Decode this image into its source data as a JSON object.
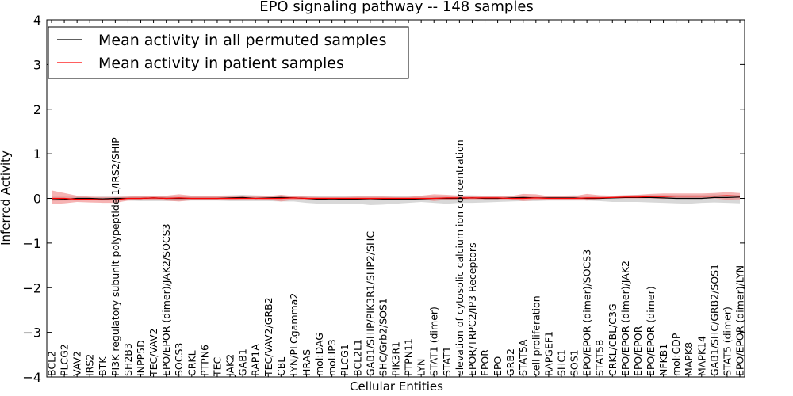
{
  "chart_data": {
    "type": "line",
    "title": "EPO signaling pathway -- 148 samples",
    "xlabel": "Cellular Entities",
    "ylabel": "Inferred Activity",
    "ylim": [
      -4,
      4
    ],
    "yticks": [
      {
        "value": -4,
        "label": "−4"
      },
      {
        "value": -3,
        "label": "−3"
      },
      {
        "value": -2,
        "label": "−2"
      },
      {
        "value": -1,
        "label": "−1"
      },
      {
        "value": 0,
        "label": "0"
      },
      {
        "value": 1,
        "label": "1"
      },
      {
        "value": 2,
        "label": "2"
      },
      {
        "value": 3,
        "label": "3"
      },
      {
        "value": 4,
        "label": "4"
      }
    ],
    "grid": false,
    "legend_position": "top-left",
    "legend": [
      {
        "label": "Mean activity in all permuted samples",
        "color": "#000000"
      },
      {
        "label": "Mean activity in patient samples",
        "color": "#ff0000"
      }
    ],
    "colors": {
      "permuted_line": "#000000",
      "patient_line": "#ff0000",
      "permuted_band": "#c8c8c8",
      "patient_band": "#f08080"
    },
    "categories": [
      "BCL2",
      "PLCG2",
      "VAV2",
      "IRS2",
      "BTK",
      "PI3K regulatory subunit polypeptide 1/IRS2/SHIP",
      "SH2B3",
      "INPP5D",
      "TEC/VAV2",
      "EPO/EPOR (dimer)/JAK2/SOCS3",
      "SOCS3",
      "CRKL",
      "PTPN6",
      "TEC",
      "JAK2",
      "GAB1",
      "RAP1A",
      "TEC/VAV2/GRB2",
      "CBL",
      "LYN/PLCgamma2",
      "HRAS",
      "mol:DAG",
      "mol:IP3",
      "PLCG1",
      "BCL2L1",
      "GAB1/SHIP/PIK3R1/SHP2/SHC",
      "SHC/Grb2/SOS1",
      "PIK3R1",
      "PTPN11",
      "LYN",
      "STAT1 (dimer)",
      "STAT1",
      "elevation of cytosolic calcium ion concentration",
      "EPOR/TRPC2/IP3 Receptors",
      "EPOR",
      "EPO",
      "GRB2",
      "STAT5A",
      "cell proliferation",
      "RAPGEF1",
      "SHC1",
      "SOS1",
      "EPO/EPOR (dimer)/SOCS3",
      "STAT5B",
      "CRKL/CBL/C3G",
      "EPO/EPOR (dimer)/JAK2",
      "EPO/EPOR",
      "EPO/EPOR (dimer)",
      "NFKB1",
      "mol:GDP",
      "MAPK8",
      "MAPK14",
      "GAB1/SHC/GRB2/SOS1",
      "STAT5 (dimer)",
      "EPO/EPOR (dimer)/LYN"
    ],
    "series": [
      {
        "name": "Mean activity in all permuted samples",
        "values": [
          -0.03,
          -0.02,
          0.0,
          0.0,
          -0.01,
          0.0,
          0.0,
          0.0,
          0.01,
          0.0,
          0.0,
          0.0,
          0.0,
          0.0,
          0.01,
          0.02,
          0.0,
          0.01,
          0.02,
          0.01,
          0.0,
          -0.02,
          -0.01,
          -0.02,
          -0.02,
          -0.03,
          -0.02,
          -0.02,
          -0.02,
          -0.01,
          0.0,
          0.0,
          0.0,
          0.01,
          0.0,
          0.0,
          0.01,
          0.02,
          0.01,
          0.01,
          0.01,
          0.01,
          0.0,
          0.0,
          0.01,
          0.02,
          0.02,
          0.02,
          0.01,
          0.0,
          0.0,
          0.0,
          0.02,
          0.02,
          0.03
        ],
        "band_low": [
          -0.06,
          -0.05,
          -0.05,
          -0.04,
          -0.05,
          -0.05,
          -0.05,
          -0.06,
          -0.06,
          -0.06,
          -0.06,
          -0.05,
          -0.05,
          -0.05,
          -0.06,
          -0.06,
          -0.06,
          -0.06,
          -0.07,
          -0.07,
          -0.1,
          -0.12,
          -0.13,
          -0.13,
          -0.12,
          -0.15,
          -0.14,
          -0.12,
          -0.1,
          -0.08,
          -0.1,
          -0.12,
          -0.1,
          -0.1,
          -0.09,
          -0.08,
          -0.07,
          -0.06,
          -0.06,
          -0.05,
          -0.05,
          -0.05,
          -0.05,
          -0.06,
          -0.08,
          -0.08,
          -0.08,
          -0.09,
          -0.1,
          -0.11,
          -0.12,
          -0.1,
          -0.09,
          -0.1,
          -0.11
        ],
        "band_high": [
          0.04,
          0.04,
          0.04,
          0.03,
          0.04,
          0.04,
          0.04,
          0.05,
          0.06,
          0.06,
          0.05,
          0.05,
          0.06,
          0.06,
          0.07,
          0.08,
          0.07,
          0.06,
          0.07,
          0.06,
          0.06,
          0.06,
          0.05,
          0.05,
          0.05,
          0.05,
          0.05,
          0.05,
          0.05,
          0.05,
          0.06,
          0.06,
          0.07,
          0.07,
          0.06,
          0.06,
          0.06,
          0.06,
          0.06,
          0.06,
          0.06,
          0.07,
          0.06,
          0.06,
          0.06,
          0.07,
          0.08,
          0.08,
          0.08,
          0.08,
          0.08,
          0.08,
          0.09,
          0.08,
          0.08
        ]
      },
      {
        "name": "Mean activity in patient samples",
        "values": [
          0.0,
          0.0,
          -0.02,
          -0.02,
          -0.03,
          -0.03,
          0.0,
          0.0,
          0.01,
          0.0,
          0.01,
          0.0,
          0.0,
          0.0,
          0.0,
          0.0,
          0.0,
          0.0,
          0.0,
          0.01,
          0.0,
          0.0,
          0.0,
          0.0,
          0.0,
          0.0,
          0.0,
          0.0,
          0.0,
          0.0,
          0.0,
          0.01,
          0.01,
          0.01,
          0.01,
          0.01,
          0.0,
          0.0,
          0.01,
          0.0,
          0.0,
          0.0,
          0.01,
          0.01,
          0.02,
          0.03,
          0.03,
          0.04,
          0.04,
          0.05,
          0.05,
          0.05,
          0.05,
          0.06,
          0.05
        ],
        "band_low": [
          -0.13,
          -0.11,
          -0.08,
          -0.09,
          -0.1,
          -0.1,
          -0.05,
          -0.04,
          -0.04,
          -0.05,
          -0.07,
          -0.04,
          -0.03,
          -0.03,
          -0.03,
          -0.02,
          -0.02,
          -0.03,
          -0.07,
          -0.03,
          -0.03,
          -0.02,
          -0.02,
          -0.02,
          -0.02,
          -0.03,
          -0.02,
          -0.02,
          -0.02,
          -0.02,
          -0.06,
          -0.03,
          -0.02,
          -0.02,
          -0.02,
          -0.02,
          -0.02,
          -0.06,
          -0.04,
          -0.02,
          -0.02,
          -0.02,
          -0.05,
          -0.01,
          0.0,
          0.0,
          0.0,
          0.0,
          -0.01,
          0.0,
          -0.01,
          -0.01,
          0.0,
          -0.03,
          -0.02
        ],
        "band_high": [
          0.18,
          0.12,
          0.06,
          0.04,
          0.03,
          0.03,
          0.04,
          0.06,
          0.05,
          0.06,
          0.09,
          0.06,
          0.05,
          0.05,
          0.05,
          0.06,
          0.05,
          0.05,
          0.08,
          0.05,
          0.04,
          0.03,
          0.03,
          0.03,
          0.04,
          0.04,
          0.04,
          0.03,
          0.03,
          0.06,
          0.09,
          0.08,
          0.06,
          0.05,
          0.05,
          0.05,
          0.05,
          0.1,
          0.09,
          0.05,
          0.05,
          0.05,
          0.1,
          0.07,
          0.06,
          0.07,
          0.08,
          0.1,
          0.11,
          0.11,
          0.11,
          0.11,
          0.12,
          0.14,
          0.12
        ]
      }
    ]
  }
}
